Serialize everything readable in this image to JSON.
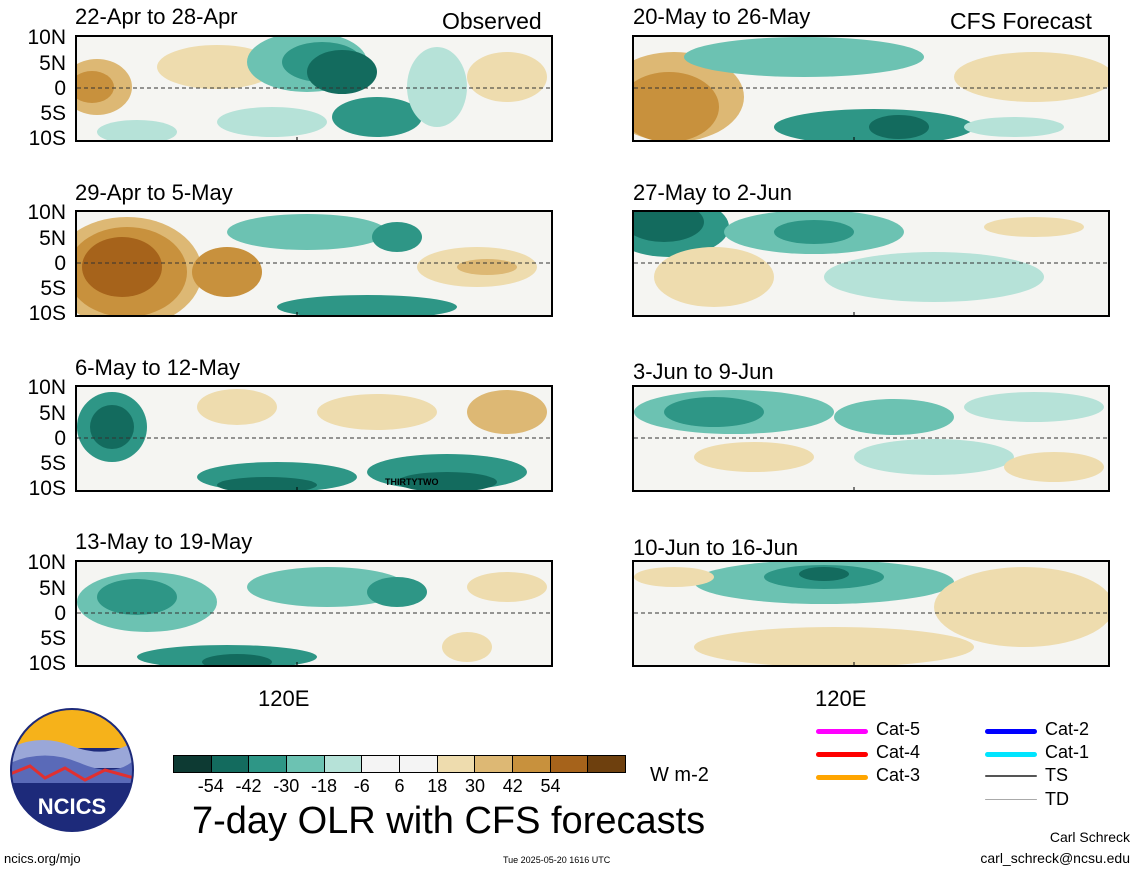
{
  "header": {
    "observed_label": "Observed",
    "forecast_label": "CFS Forecast"
  },
  "observed_panels": [
    {
      "title": "22-Apr to 28-Apr",
      "annotation": ""
    },
    {
      "title": "29-Apr to 5-May",
      "annotation": ""
    },
    {
      "title": "6-May to 12-May",
      "annotation": "THIRTYTWO"
    },
    {
      "title": "13-May to 19-May",
      "annotation": ""
    }
  ],
  "forecast_panels": [
    {
      "title": "20-May to 26-May"
    },
    {
      "title": "27-May to 2-Jun"
    },
    {
      "title": "3-Jun to 9-Jun"
    },
    {
      "title": "10-Jun to 16-Jun"
    }
  ],
  "axes": {
    "y_labels": [
      "10N",
      "5N",
      "0",
      "5S",
      "10S"
    ],
    "x_label": "120E"
  },
  "colorbar": {
    "colors": [
      "#0d3a33",
      "#136b5e",
      "#2e9686",
      "#6cc2b2",
      "#b6e2d8",
      "#f4f4f4",
      "#f4f4f4",
      "#eedcae",
      "#ddb874",
      "#c8913d",
      "#a6631b",
      "#6e400e"
    ],
    "ticks": [
      "-54",
      "-42",
      "-30",
      "-18",
      "-6",
      "6",
      "18",
      "30",
      "42",
      "54"
    ],
    "units": "W m-2"
  },
  "title": "7-day OLR with CFS forecasts",
  "storm_legend": [
    {
      "label": "Cat-5",
      "color": "#ff00ff"
    },
    {
      "label": "Cat-4",
      "color": "#ff0000"
    },
    {
      "label": "Cat-3",
      "color": "#ffa500"
    },
    {
      "label": "Cat-2",
      "color": "#0000ff"
    },
    {
      "label": "Cat-1",
      "color": "#00e5ff"
    },
    {
      "label": "TS",
      "color": "#555555"
    },
    {
      "label": "TD",
      "color": "#aaaaaa"
    }
  ],
  "logo": {
    "text": "NCICS"
  },
  "footer": {
    "website": "ncics.org/mjo",
    "timestamp": "Tue 2025-05-20 1616 UTC",
    "author": "Carl Schreck",
    "email": "carl_schreck@ncsu.edu"
  }
}
